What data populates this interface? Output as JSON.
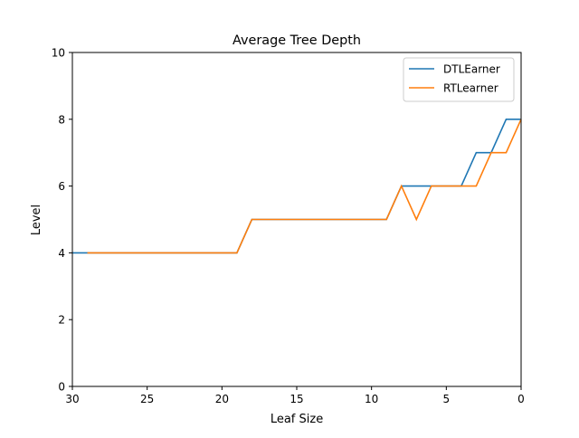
{
  "chart_data": {
    "type": "line",
    "title": "Average Tree Depth",
    "xlabel": "Leaf Size",
    "ylabel": "Level",
    "xlim": [
      30,
      0
    ],
    "ylim": [
      0,
      10
    ],
    "x_ticks": [
      30,
      25,
      20,
      15,
      10,
      5,
      0
    ],
    "y_ticks": [
      0,
      2,
      4,
      6,
      8,
      10
    ],
    "grid": false,
    "legend_position": "top-right",
    "x": [
      30,
      29,
      28,
      27,
      26,
      25,
      24,
      23,
      22,
      21,
      20,
      19,
      18,
      17,
      16,
      15,
      14,
      13,
      12,
      11,
      10,
      9,
      8,
      7,
      6,
      5,
      4,
      3,
      2,
      1,
      0
    ],
    "series": [
      {
        "name": "DTLEarner",
        "color": "#1f77b4",
        "values": [
          4,
          4,
          4,
          4,
          4,
          4,
          4,
          4,
          4,
          4,
          4,
          4,
          5,
          5,
          5,
          5,
          5,
          5,
          5,
          5,
          5,
          5,
          6,
          6,
          6,
          6,
          6,
          7,
          7,
          8,
          8
        ]
      },
      {
        "name": "RTLearner",
        "color": "#ff7f0e",
        "values": [
          null,
          4,
          4,
          4,
          4,
          4,
          4,
          4,
          4,
          4,
          4,
          4,
          5,
          5,
          5,
          5,
          5,
          5,
          5,
          5,
          5,
          5,
          6,
          5,
          6,
          6,
          6,
          6,
          7,
          7,
          8
        ]
      }
    ]
  }
}
